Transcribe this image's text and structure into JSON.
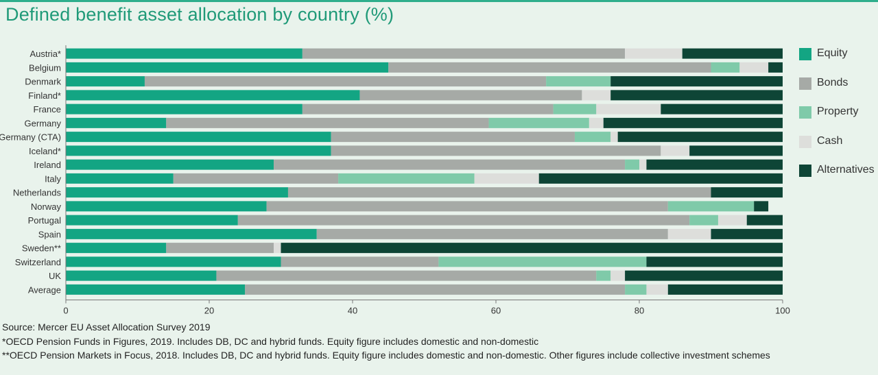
{
  "title": "Defined benefit asset allocation by country (%)",
  "colors": {
    "Equity": "#13a583",
    "Bonds": "#a6aaa6",
    "Property": "#7fcaa9",
    "Cash": "#dddedb",
    "Alternatives": "#0e4536",
    "background": "#e9f3ec",
    "title": "#1f9a78"
  },
  "legend": [
    {
      "name": "Equity",
      "label": "Equity"
    },
    {
      "name": "Bonds",
      "label": "Bonds"
    },
    {
      "name": "Property",
      "label": "Property"
    },
    {
      "name": "Cash",
      "label": "Cash"
    },
    {
      "name": "Alternatives",
      "label": "Alternatives"
    }
  ],
  "chart_data": {
    "type": "bar",
    "orientation": "horizontal",
    "stacked": true,
    "title": "Defined benefit asset allocation by country (%)",
    "categories": [
      "Austria*",
      "Belgium",
      "Denmark",
      "Finland*",
      "France",
      "Germany",
      "Germany (CTA)",
      "Iceland*",
      "Ireland",
      "Italy",
      "Netherlands",
      "Norway",
      "Portugal",
      "Spain",
      "Sweden**",
      "Switzerland",
      "UK",
      "Average"
    ],
    "series": [
      {
        "name": "Equity",
        "values": [
          33,
          45,
          11,
          41,
          33,
          14,
          37,
          37,
          29,
          15,
          31,
          28,
          24,
          35,
          14,
          30,
          21,
          25
        ]
      },
      {
        "name": "Bonds",
        "values": [
          45,
          45,
          56,
          31,
          35,
          45,
          34,
          46,
          49,
          23,
          59,
          56,
          63,
          49,
          15,
          22,
          53,
          53
        ]
      },
      {
        "name": "Property",
        "values": [
          0,
          4,
          9,
          0,
          6,
          14,
          5,
          0,
          2,
          19,
          0,
          12,
          4,
          0,
          0,
          29,
          2,
          3
        ]
      },
      {
        "name": "Cash",
        "values": [
          8,
          4,
          0,
          4,
          9,
          2,
          1,
          4,
          1,
          9,
          0,
          0,
          4,
          6,
          1,
          0,
          2,
          3
        ]
      },
      {
        "name": "Alternatives",
        "values": [
          14,
          2,
          24,
          24,
          17,
          25,
          23,
          13,
          19,
          34,
          10,
          2,
          5,
          10,
          70,
          19,
          22,
          16
        ]
      }
    ],
    "xlim": [
      0,
      100
    ],
    "xticks": [
      0,
      20,
      40,
      60,
      80,
      100
    ],
    "grid": false,
    "legend_position": "right"
  },
  "notes": [
    "Source: Mercer EU Asset Allocation Survey 2019",
    "*OECD Pension Funds in Figures, 2019. Includes DB, DC and hybrid funds. Equity figure includes domestic and non-domestic",
    "**OECD Pension Markets in Focus, 2018. Includes DB, DC and hybrid funds. Equity figure includes domestic and non-domestic. Other figures include collective investment schemes"
  ]
}
